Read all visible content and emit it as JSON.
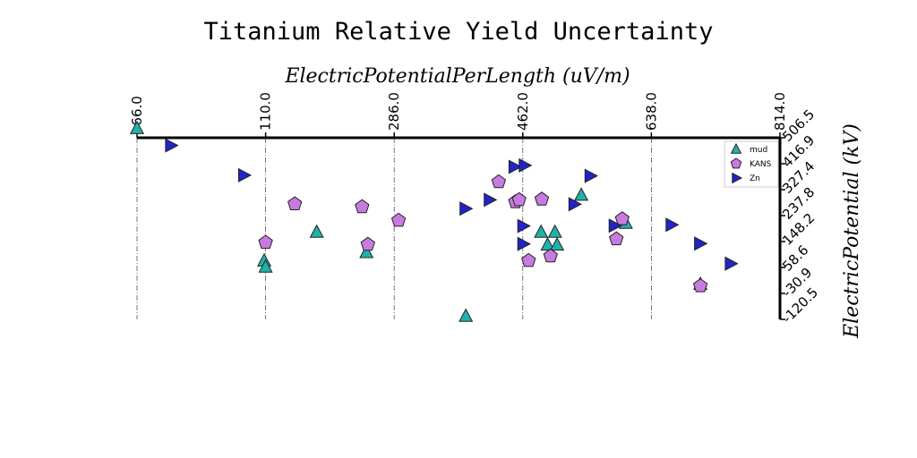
{
  "chart_data": {
    "type": "scatter",
    "title": "Titanium Relative Yield Uncertainty",
    "xlabel": "ElectricPotentialPerLength (uV/m)",
    "ylabel": "ElectricPotential (kV)",
    "xlim": [
      -66.0,
      814.0
    ],
    "ylim": [
      -120.5,
      506.5
    ],
    "xticks": [
      "-66.0",
      "110.0",
      "286.0",
      "462.0",
      "638.0",
      "814.0"
    ],
    "yticks": [
      "506.5",
      "416.9",
      "327.4",
      "237.8",
      "148.2",
      "58.6",
      "-30.9",
      "-120.5"
    ],
    "x_axis_position": "top",
    "y_axis_position": "right",
    "grid": "vertical dash-dot lines at x ticks",
    "legend_position": "top-right",
    "series": [
      {
        "name": "mud",
        "marker": "triangle",
        "color": "#20b2aa",
        "points": [
          [
            -66,
            538
          ],
          [
            108,
            81
          ],
          [
            110,
            60
          ],
          [
            180,
            180
          ],
          [
            248,
            110
          ],
          [
            384,
            -110
          ],
          [
            487,
            180
          ],
          [
            496,
            136
          ],
          [
            506,
            180
          ],
          [
            509,
            136
          ],
          [
            542,
            308
          ],
          [
            603,
            211
          ],
          [
            705,
            0
          ]
        ]
      },
      {
        "name": "KANS",
        "marker": "pentagon",
        "color": "#c77be0",
        "points": [
          [
            110,
            145
          ],
          [
            150,
            278
          ],
          [
            242,
            268
          ],
          [
            250,
            138
          ],
          [
            292,
            221
          ],
          [
            429,
            354
          ],
          [
            452,
            285
          ],
          [
            457,
            292
          ],
          [
            470,
            82
          ],
          [
            488,
            294
          ],
          [
            500,
            98
          ],
          [
            590,
            157
          ],
          [
            598,
            226
          ],
          [
            705,
            -5
          ]
        ]
      },
      {
        "name": "Zn",
        "marker": "triangle-right",
        "color": "#2323c8",
        "points": [
          [
            -20,
            480
          ],
          [
            80,
            377
          ],
          [
            383,
            262
          ],
          [
            416,
            292
          ],
          [
            450,
            406
          ],
          [
            464,
            411
          ],
          [
            462,
            202
          ],
          [
            462,
            140
          ],
          [
            532,
            277
          ],
          [
            554,
            375
          ],
          [
            587,
            203
          ],
          [
            665,
            206
          ],
          [
            704,
            141
          ],
          [
            746,
            72
          ]
        ]
      }
    ]
  }
}
